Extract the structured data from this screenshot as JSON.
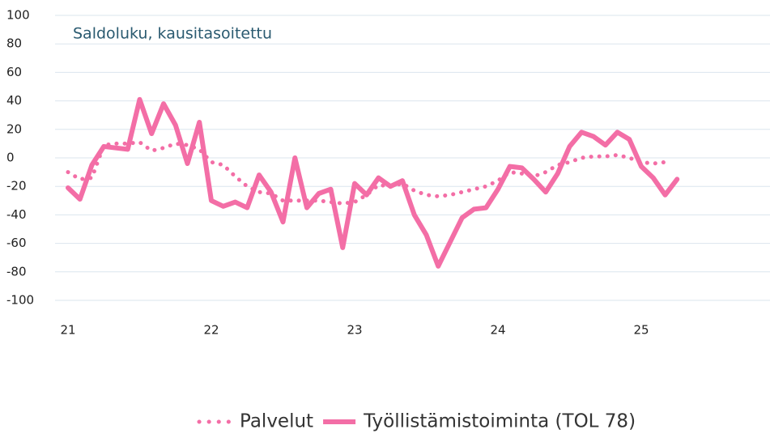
{
  "chart_data": {
    "type": "line",
    "title": "Saldoluku, kausitasoitettu",
    "categories": [
      "21",
      null,
      null,
      null,
      null,
      null,
      null,
      null,
      null,
      null,
      null,
      null,
      "22",
      null,
      null,
      null,
      null,
      null,
      null,
      null,
      null,
      null,
      null,
      null,
      "23",
      null,
      null,
      null,
      null,
      null,
      null,
      null,
      null,
      null,
      null,
      null,
      "24",
      null,
      null,
      null,
      null,
      null,
      null,
      null,
      null,
      null,
      null,
      null,
      "25",
      null,
      null,
      null
    ],
    "series": [
      {
        "name": "Palvelut",
        "color": "#f36ea6",
        "dash": "dotted",
        "values": [
          -10,
          -15,
          -14,
          9,
          10,
          10,
          11,
          5,
          7,
          10,
          9,
          6,
          -3,
          -5,
          -13,
          -20,
          -24,
          -25,
          -30,
          -30,
          -30,
          -30,
          -31,
          -32,
          -31,
          -26,
          -19,
          -20,
          -18,
          -23,
          -26,
          -27,
          -26,
          -24,
          -22,
          -20,
          -16,
          -10,
          -11,
          -13,
          -10,
          -5,
          -3,
          0,
          1,
          1,
          2,
          0,
          -3,
          -4,
          -3,
          null
        ]
      },
      {
        "name": "Työllistämistoiminta (TOL 78)",
        "color": "#f36ea6",
        "dash": "solid",
        "values": [
          -21,
          -29,
          -5,
          8,
          7,
          6,
          41,
          17,
          38,
          23,
          -4,
          25,
          -30,
          -34,
          -31,
          -35,
          -12,
          -24,
          -45,
          0,
          -35,
          -25,
          -22,
          -63,
          -18,
          -26,
          -14,
          -20,
          -16,
          -40,
          -54,
          -76,
          -59,
          -42,
          -36,
          -35,
          -22,
          -6,
          -7,
          -15,
          -24,
          -11,
          8,
          18,
          15,
          9,
          18,
          13,
          -6,
          -14,
          -26,
          -15
        ]
      }
    ],
    "ylim": [
      -100,
      100
    ],
    "yticks": [
      -100,
      -80,
      -60,
      -40,
      -20,
      0,
      20,
      40,
      60,
      80,
      100
    ],
    "grid": true
  }
}
